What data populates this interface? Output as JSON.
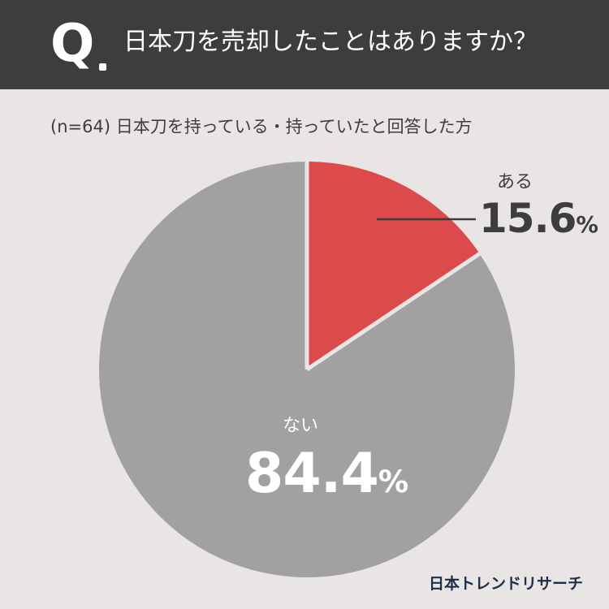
{
  "header": {
    "q_mark": "Q",
    "question": "日本刀を売却したことはありますか？",
    "background": "#3d3d3d"
  },
  "subtitle": "(n=64) 日本刀を持っている・持っていたと回答した方",
  "chart_data": {
    "type": "pie",
    "title": "日本刀を売却したことはありますか？",
    "categories": [
      "ある",
      "ない"
    ],
    "values": [
      15.6,
      84.4
    ],
    "unit": "%",
    "colors": [
      "#dc4a4c",
      "#a1a1a1"
    ],
    "labels": [
      {
        "name": "ある",
        "value_text": "15.6",
        "unit": "%"
      },
      {
        "name": "ない",
        "value_text": "84.4",
        "unit": "%"
      }
    ]
  },
  "brand": "日本トレンドリサーチ"
}
